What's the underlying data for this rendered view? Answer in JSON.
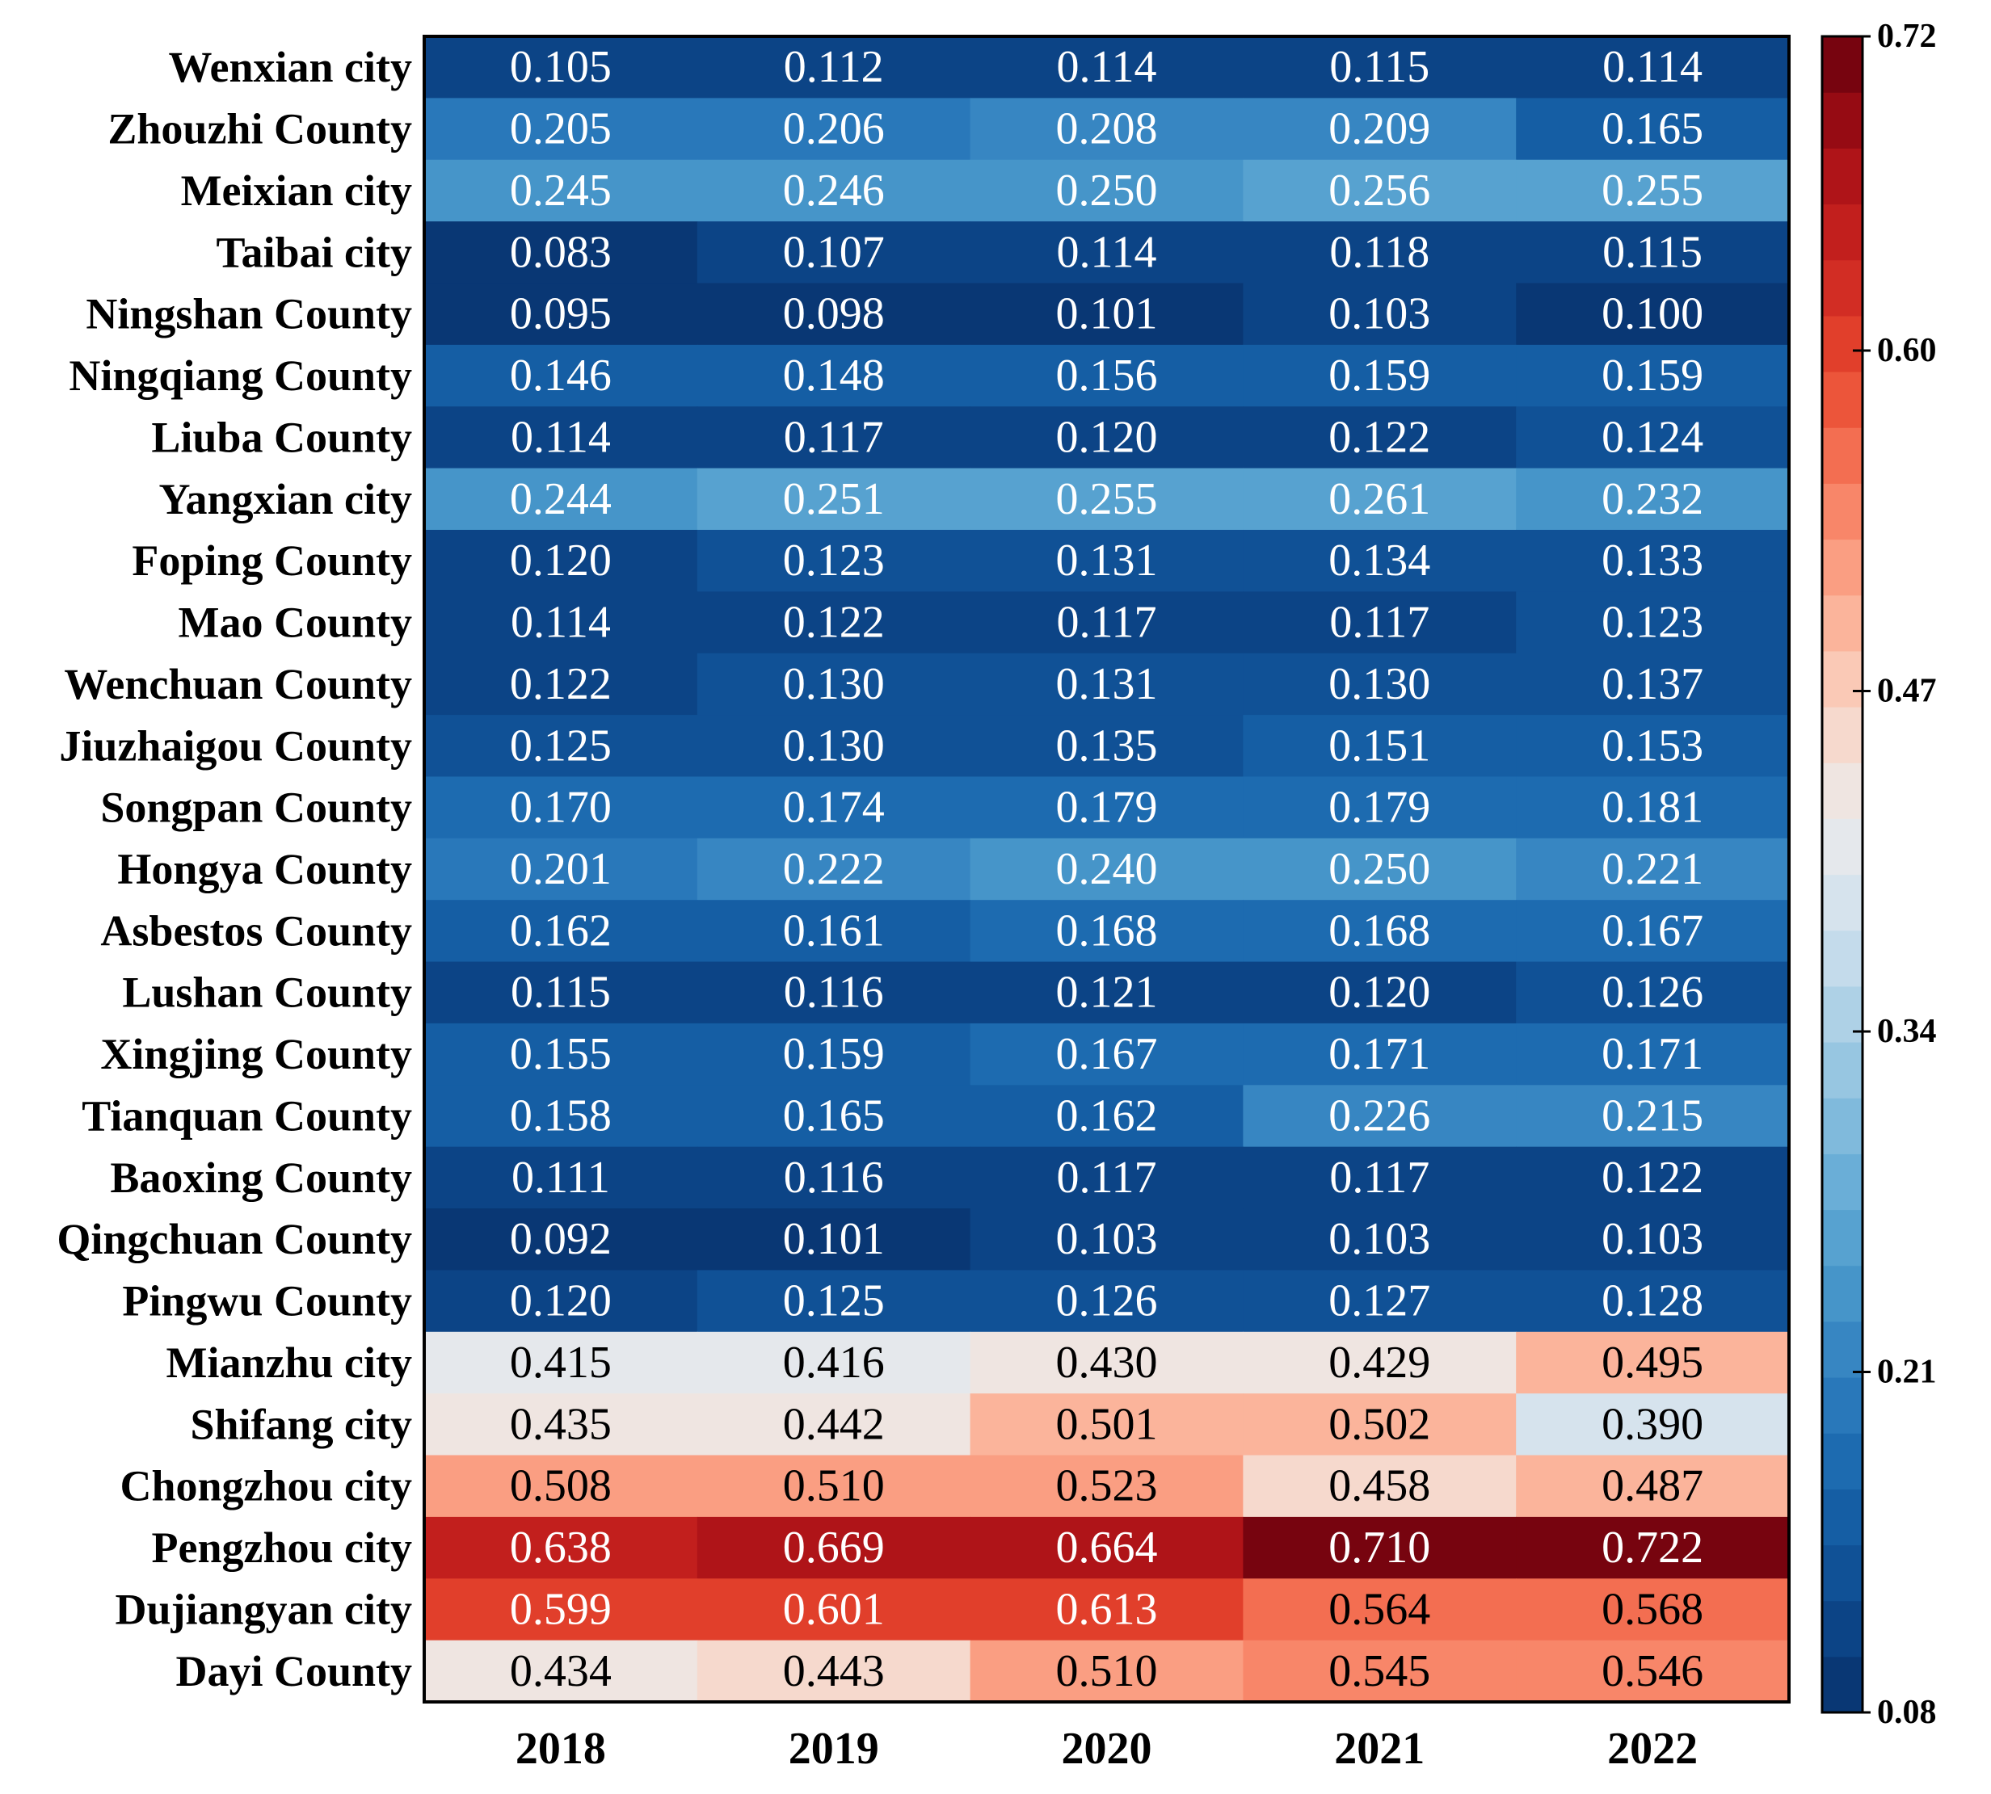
{
  "chart_data": {
    "type": "heatmap",
    "title": "",
    "xlabel": "",
    "ylabel": "",
    "columns": [
      "2018",
      "2019",
      "2020",
      "2021",
      "2022"
    ],
    "rows": [
      "Wenxian city",
      "Zhouzhi County",
      "Meixian city",
      "Taibai city",
      "Ningshan County",
      "Ningqiang County",
      "Liuba County",
      "Yangxian city",
      "Foping County",
      "Mao County",
      "Wenchuan County",
      "Jiuzhaigou County",
      "Songpan County",
      "Hongya County",
      "Asbestos County",
      "Lushan County",
      "Xingjing County",
      "Tianquan County",
      "Baoxing County",
      "Qingchuan County",
      "Pingwu County",
      "Mianzhu city",
      "Shifang city",
      "Chongzhou city",
      "Pengzhou city",
      "Dujiangyan city",
      "Dayi County"
    ],
    "values": [
      [
        0.105,
        0.112,
        0.114,
        0.115,
        0.114
      ],
      [
        0.205,
        0.206,
        0.208,
        0.209,
        0.165
      ],
      [
        0.245,
        0.246,
        0.25,
        0.256,
        0.255
      ],
      [
        0.083,
        0.107,
        0.114,
        0.118,
        0.115
      ],
      [
        0.095,
        0.098,
        0.101,
        0.103,
        0.1
      ],
      [
        0.146,
        0.148,
        0.156,
        0.159,
        0.159
      ],
      [
        0.114,
        0.117,
        0.12,
        0.122,
        0.124
      ],
      [
        0.244,
        0.251,
        0.255,
        0.261,
        0.232
      ],
      [
        0.12,
        0.123,
        0.131,
        0.134,
        0.133
      ],
      [
        0.114,
        0.122,
        0.117,
        0.117,
        0.123
      ],
      [
        0.122,
        0.13,
        0.131,
        0.13,
        0.137
      ],
      [
        0.125,
        0.13,
        0.135,
        0.151,
        0.153
      ],
      [
        0.17,
        0.174,
        0.179,
        0.179,
        0.181
      ],
      [
        0.201,
        0.222,
        0.24,
        0.25,
        0.221
      ],
      [
        0.162,
        0.161,
        0.168,
        0.168,
        0.167
      ],
      [
        0.115,
        0.116,
        0.121,
        0.12,
        0.126
      ],
      [
        0.155,
        0.159,
        0.167,
        0.171,
        0.171
      ],
      [
        0.158,
        0.165,
        0.162,
        0.226,
        0.215
      ],
      [
        0.111,
        0.116,
        0.117,
        0.117,
        0.122
      ],
      [
        0.092,
        0.101,
        0.103,
        0.103,
        0.103
      ],
      [
        0.12,
        0.125,
        0.126,
        0.127,
        0.128
      ],
      [
        0.415,
        0.416,
        0.43,
        0.429,
        0.495
      ],
      [
        0.435,
        0.442,
        0.501,
        0.502,
        0.39
      ],
      [
        0.508,
        0.51,
        0.523,
        0.458,
        0.487
      ],
      [
        0.638,
        0.669,
        0.664,
        0.71,
        0.722
      ],
      [
        0.599,
        0.601,
        0.613,
        0.564,
        0.568
      ],
      [
        0.434,
        0.443,
        0.51,
        0.545,
        0.546
      ]
    ],
    "display_values": [
      [
        "0.105",
        "0.112",
        "0.114",
        "0.115",
        "0.114"
      ],
      [
        "0.205",
        "0.206",
        "0.208",
        "0.209",
        "0.165"
      ],
      [
        "0.245",
        "0.246",
        "0.250",
        "0.256",
        "0.255"
      ],
      [
        "0.083",
        "0.107",
        "0.114",
        "0.118",
        "0.115"
      ],
      [
        "0.095",
        "0.098",
        "0.101",
        "0.103",
        "0.100"
      ],
      [
        "0.146",
        "0.148",
        "0.156",
        "0.159",
        "0.159"
      ],
      [
        "0.114",
        "0.117",
        "0.120",
        "0.122",
        "0.124"
      ],
      [
        "0.244",
        "0.251",
        "0.255",
        "0.261",
        "0.232"
      ],
      [
        "0.120",
        "0.123",
        "0.131",
        "0.134",
        "0.133"
      ],
      [
        "0.114",
        "0.122",
        "0.117",
        "0.117",
        "0.123"
      ],
      [
        "0.122",
        "0.130",
        "0.131",
        "0.130",
        "0.137"
      ],
      [
        "0.125",
        "0.130",
        "0.135",
        "0.151",
        "0.153"
      ],
      [
        "0.170",
        "0.174",
        "0.179",
        "0.179",
        "0.181"
      ],
      [
        "0.201",
        "0.222",
        "0.240",
        "0.250",
        "0.221"
      ],
      [
        "0.162",
        "0.161",
        "0.168",
        "0.168",
        "0.167"
      ],
      [
        "0.115",
        "0.116",
        "0.121",
        "0.120",
        "0.126"
      ],
      [
        "0.155",
        "0.159",
        "0.167",
        "0.171",
        "0.171"
      ],
      [
        "0.158",
        "0.165",
        "0.162",
        "0.226",
        "0.215"
      ],
      [
        "0.111",
        "0.116",
        "0.117",
        "0.117",
        "0.122"
      ],
      [
        "0.092",
        "0.101",
        "0.103",
        "0.103",
        "0.103"
      ],
      [
        "0.120",
        "0.125",
        "0.126",
        "0.127",
        "0.128"
      ],
      [
        "0.415",
        "0.416",
        "0.430",
        "0.429",
        "0.495"
      ],
      [
        "0.435",
        "0.442",
        "0.501",
        "0.502",
        "0.390"
      ],
      [
        "0.508",
        "0.510",
        "0.523",
        "0.458",
        "0.487"
      ],
      [
        "0.638",
        "0.669",
        "0.664",
        "0.710",
        "0.722"
      ],
      [
        "0.599",
        "0.601",
        "0.613",
        "0.564",
        "0.568"
      ],
      [
        "0.434",
        "0.443",
        "0.510",
        "0.545",
        "0.546"
      ]
    ],
    "colorbar": {
      "range": [
        0.08,
        0.72
      ],
      "ticks": [
        "0.72",
        "0.60",
        "0.47",
        "0.34",
        "0.21",
        "0.08"
      ],
      "tick_values": [
        0.72,
        0.6,
        0.47,
        0.34,
        0.21,
        0.08
      ],
      "colormap": "RdBu_r",
      "levels": 30
    },
    "colors": {
      "stops": [
        "#08306b",
        "#0d4a8f",
        "#1764ab",
        "#2f7fbf",
        "#4d9ccc",
        "#74b4da",
        "#a3cce3",
        "#cfe0ee",
        "#ecebeb",
        "#f9d3c3",
        "#fbaa8e",
        "#f77a5c",
        "#e8482f",
        "#cb2420",
        "#a50f15",
        "#67000d"
      ],
      "dark_text": "#000000",
      "light_text": "#ffffff",
      "border": "#000000"
    }
  }
}
